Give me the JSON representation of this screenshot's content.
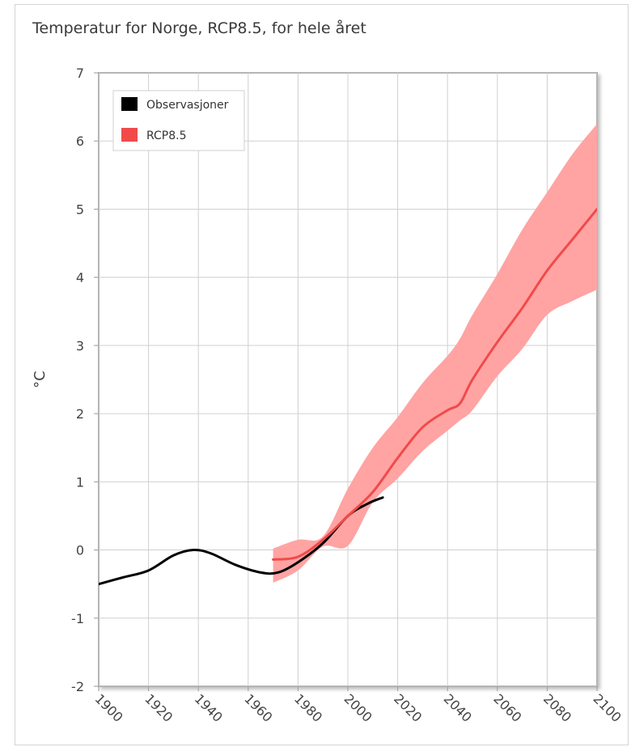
{
  "chart_data": {
    "type": "line",
    "title": "Temperatur for Norge, RCP8.5, for hele året",
    "xlabel": "",
    "ylabel": "°C",
    "xlim": [
      1900,
      2100
    ],
    "ylim": [
      -2,
      7
    ],
    "x_ticks": [
      1900,
      1920,
      1940,
      1960,
      1980,
      2000,
      2020,
      2040,
      2060,
      2080,
      2100
    ],
    "y_ticks": [
      7,
      6,
      5,
      4,
      3,
      2,
      1,
      0,
      -1,
      -2
    ],
    "grid": true,
    "legend_position": "top-left",
    "series": [
      {
        "name": "Observasjoner",
        "color": "#000000",
        "x": [
          1900,
          1910,
          1920,
          1930,
          1938,
          1945,
          1955,
          1965,
          1972,
          1980,
          1990,
          2000,
          2008,
          2014
        ],
        "values": [
          -0.5,
          -0.4,
          -0.3,
          -0.08,
          0.0,
          -0.05,
          -0.22,
          -0.33,
          -0.33,
          -0.18,
          0.1,
          0.5,
          0.68,
          0.77
        ]
      },
      {
        "name": "RCP8.5",
        "color": "#f14a4a",
        "band_color": "#ffa3a3",
        "x": [
          1970,
          1980,
          1990,
          2000,
          2010,
          2020,
          2030,
          2040,
          2045,
          2050,
          2060,
          2070,
          2080,
          2090,
          2100
        ],
        "values": [
          -0.14,
          -0.1,
          0.15,
          0.5,
          0.85,
          1.35,
          1.8,
          2.05,
          2.15,
          2.5,
          3.05,
          3.55,
          4.1,
          4.55,
          5.0
        ],
        "band_upper": [
          0.02,
          0.15,
          0.2,
          0.9,
          1.5,
          1.95,
          2.45,
          2.85,
          3.1,
          3.45,
          4.05,
          4.7,
          5.25,
          5.8,
          6.25
        ],
        "band_lower": [
          -0.48,
          -0.3,
          0.05,
          0.06,
          0.7,
          1.05,
          1.45,
          1.75,
          1.9,
          2.05,
          2.55,
          2.95,
          3.45,
          3.65,
          3.82
        ]
      }
    ]
  }
}
